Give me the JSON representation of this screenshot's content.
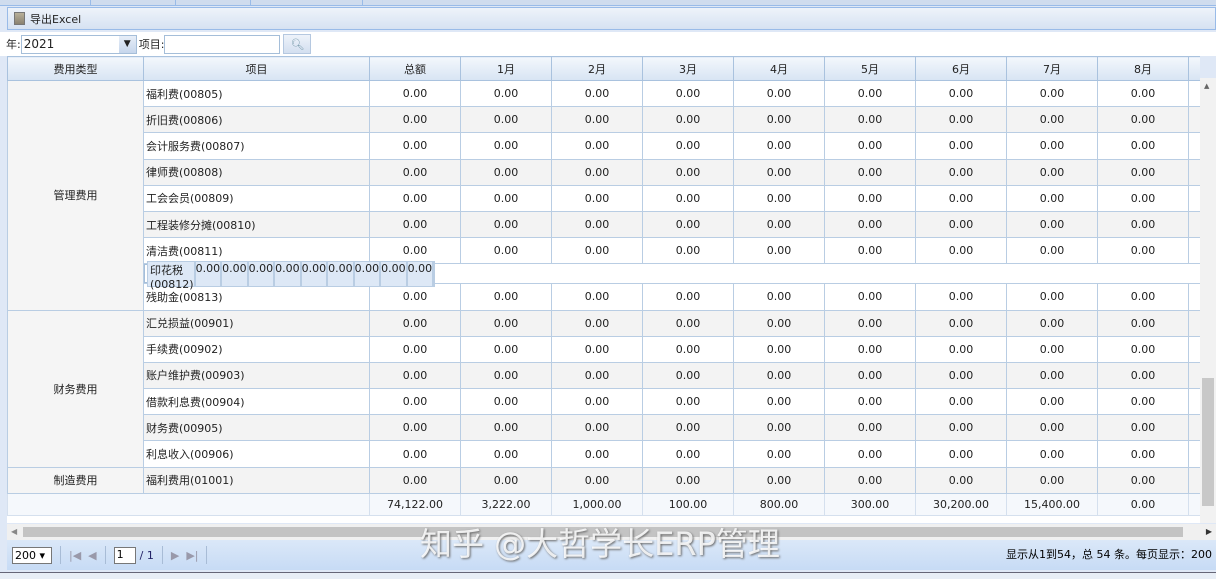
{
  "toolbar": {
    "export_label": "导出Excel",
    "export_icon": "excel-icon"
  },
  "filter": {
    "year_label": "年:",
    "year_value": "2021",
    "item_label": "项目:",
    "item_value": "",
    "search_icon": "search-icon"
  },
  "columns": [
    "费用类型",
    "项目",
    "总额",
    "1月",
    "2月",
    "3月",
    "4月",
    "5月",
    "6月",
    "7月",
    "8月"
  ],
  "groups": [
    {
      "type": "管理费用",
      "items": [
        "福利费(00805)",
        "折旧费(00806)",
        "会计服务费(00807)",
        "律师费(00808)",
        "工会会员(00809)",
        "工程装修分摊(00810)",
        "清洁费(00811)",
        "印花税(00812)",
        "残助金(00813)"
      ]
    },
    {
      "type": "财务费用",
      "items": [
        "汇兑损益(00901)",
        "手续费(00902)",
        "账户维护费(00903)",
        "借款利息费(00904)",
        "财务费(00905)",
        "利息收入(00906)"
      ]
    },
    {
      "type": "制造费用",
      "items": [
        "福利费用(01001)"
      ]
    }
  ],
  "cell_value": "0.00",
  "selected_item": "印花税(00812)",
  "totals": [
    "74,122.00",
    "3,222.00",
    "1,000.00",
    "100.00",
    "800.00",
    "300.00",
    "30,200.00",
    "15,400.00",
    "0.00"
  ],
  "pager": {
    "page_size": "200",
    "page": "1",
    "total_pages": "/ 1",
    "info": "显示从1到54，总 54 条。每页显示：200"
  },
  "watermark": "知乎 @大哲学长ERP管理"
}
